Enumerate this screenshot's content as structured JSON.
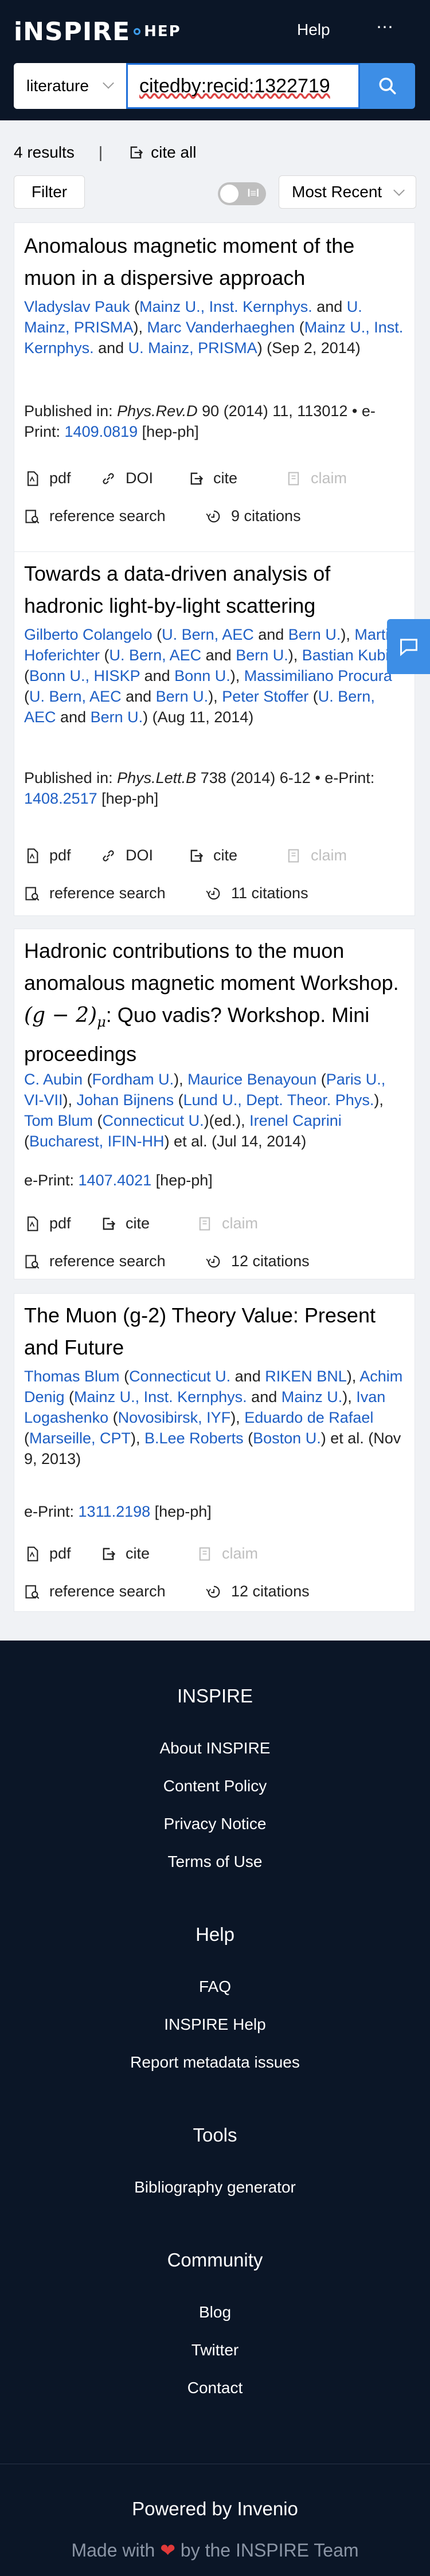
{
  "header": {
    "logo_main": "iNSPIRE",
    "logo_sub": "HEP",
    "help_label": "Help",
    "more_label": "⋯"
  },
  "search": {
    "collection": "literature",
    "query": "citedby:recid:1322719",
    "button_icon": "search-icon"
  },
  "results_bar": {
    "count_label": "4 results",
    "separator": "|",
    "cite_all_label": "cite all",
    "filter_label": "Filter",
    "toggle_label": "l≡l",
    "sort_label": "Most Recent"
  },
  "colors": {
    "header_bg": "#0b1627",
    "accent": "#3d8ee6",
    "link": "#1d5ec4"
  },
  "records": [
    {
      "title": "Anomalous magnetic moment of the muon in a dispersive approach",
      "authors_html_parts": [
        {
          "t": "Vladyslav Pauk",
          "l": 1
        },
        {
          "t": " (",
          "l": 0
        },
        {
          "t": "Mainz U., Inst. Kernphys.",
          "l": 1
        },
        {
          "t": " and ",
          "l": 0
        },
        {
          "t": "U. Mainz, PRISMA",
          "l": 1
        },
        {
          "t": "), ",
          "l": 0
        },
        {
          "t": "Marc Vanderhaeghen",
          "l": 1
        },
        {
          "t": " (",
          "l": 0
        },
        {
          "t": "Mainz U., Inst. Kernphys.",
          "l": 1
        },
        {
          "t": " and ",
          "l": 0
        },
        {
          "t": "U. Mainz, PRISMA",
          "l": 1
        },
        {
          "t": ") (Sep 2, 2014)",
          "l": 0
        }
      ],
      "pub_prefix": "Published in: ",
      "journal": "Phys.Rev.D",
      "pub_rest": " 90 (2014) 11, 113012 • e-Print: ",
      "eprint": "1409.0819",
      "category": " [hep-ph]",
      "actions": [
        "pdf",
        "DOI",
        "cite",
        "claim"
      ],
      "ref_search": "reference search",
      "citations": "9 citations"
    },
    {
      "title": "Towards a data-driven analysis of hadronic light-by-light scattering",
      "authors_html_parts": [
        {
          "t": "Gilberto Colangelo",
          "l": 1
        },
        {
          "t": " (",
          "l": 0
        },
        {
          "t": "U. Bern, AEC",
          "l": 1
        },
        {
          "t": " and ",
          "l": 0
        },
        {
          "t": "Bern U.",
          "l": 1
        },
        {
          "t": "), ",
          "l": 0
        },
        {
          "t": "Martin Hoferichter",
          "l": 1
        },
        {
          "t": " (",
          "l": 0
        },
        {
          "t": "U. Bern, AEC",
          "l": 1
        },
        {
          "t": " and ",
          "l": 0
        },
        {
          "t": "Bern U.",
          "l": 1
        },
        {
          "t": "), ",
          "l": 0
        },
        {
          "t": "Bastian Kubis",
          "l": 1
        },
        {
          "t": " (",
          "l": 0
        },
        {
          "t": "Bonn U., HISKP",
          "l": 1
        },
        {
          "t": " and ",
          "l": 0
        },
        {
          "t": "Bonn U.",
          "l": 1
        },
        {
          "t": "), ",
          "l": 0
        },
        {
          "t": "Massimiliano Procura",
          "l": 1
        },
        {
          "t": " (",
          "l": 0
        },
        {
          "t": "U. Bern, AEC",
          "l": 1
        },
        {
          "t": " and ",
          "l": 0
        },
        {
          "t": "Bern U.",
          "l": 1
        },
        {
          "t": "), ",
          "l": 0
        },
        {
          "t": "Peter Stoffer",
          "l": 1
        },
        {
          "t": " (",
          "l": 0
        },
        {
          "t": "U. Bern, AEC",
          "l": 1
        },
        {
          "t": " and ",
          "l": 0
        },
        {
          "t": "Bern U.",
          "l": 1
        },
        {
          "t": ") (Aug 11, 2014)",
          "l": 0
        }
      ],
      "pub_prefix": "Published in: ",
      "journal": "Phys.Lett.B",
      "pub_rest": " 738 (2014) 6-12 • e-Print: ",
      "eprint": "1408.2517",
      "category": " [hep-ph]",
      "actions": [
        "pdf",
        "DOI",
        "cite",
        "claim"
      ],
      "ref_search": "reference search",
      "citations": "11 citations"
    },
    {
      "title_pre": "Hadronic contributions to the muon anomalous magnetic moment Workshop. ",
      "title_math": "(g − 2)",
      "title_sub": "μ",
      "title_post": ": Quo vadis? Workshop. Mini proceedings",
      "authors_html_parts": [
        {
          "t": "C. Aubin",
          "l": 1
        },
        {
          "t": " (",
          "l": 0
        },
        {
          "t": "Fordham U.",
          "l": 1
        },
        {
          "t": "), ",
          "l": 0
        },
        {
          "t": "Maurice Benayoun",
          "l": 1
        },
        {
          "t": " (",
          "l": 0
        },
        {
          "t": "Paris U., VI-VII",
          "l": 1
        },
        {
          "t": "), ",
          "l": 0
        },
        {
          "t": "Johan Bijnens",
          "l": 1
        },
        {
          "t": " (",
          "l": 0
        },
        {
          "t": "Lund U., Dept. Theor. Phys.",
          "l": 1
        },
        {
          "t": "), ",
          "l": 0
        },
        {
          "t": "Tom Blum",
          "l": 1
        },
        {
          "t": " (",
          "l": 0
        },
        {
          "t": "Connecticut U.",
          "l": 1
        },
        {
          "t": ")(ed.), ",
          "l": 0
        },
        {
          "t": "Irenel Caprini",
          "l": 1
        },
        {
          "t": " (",
          "l": 0
        },
        {
          "t": "Bucharest, IFIN-HH",
          "l": 1
        },
        {
          "t": ") et al. (Jul 14, 2014)",
          "l": 0
        }
      ],
      "eprint_prefix": "e-Print: ",
      "eprint": "1407.4021",
      "category": " [hep-ph]",
      "actions": [
        "pdf",
        "cite",
        "claim"
      ],
      "ref_search": "reference search",
      "citations": "12 citations"
    },
    {
      "title": "The Muon (g-2) Theory Value: Present and Future",
      "authors_html_parts": [
        {
          "t": "Thomas Blum",
          "l": 1
        },
        {
          "t": " (",
          "l": 0
        },
        {
          "t": "Connecticut U.",
          "l": 1
        },
        {
          "t": " and ",
          "l": 0
        },
        {
          "t": "RIKEN BNL",
          "l": 1
        },
        {
          "t": "), ",
          "l": 0
        },
        {
          "t": "Achim Denig",
          "l": 1
        },
        {
          "t": " (",
          "l": 0
        },
        {
          "t": "Mainz U., Inst. Kernphys.",
          "l": 1
        },
        {
          "t": " and ",
          "l": 0
        },
        {
          "t": "Mainz U.",
          "l": 1
        },
        {
          "t": "), ",
          "l": 0
        },
        {
          "t": "Ivan Logashenko",
          "l": 1
        },
        {
          "t": " (",
          "l": 0
        },
        {
          "t": "Novosibirsk, IYF",
          "l": 1
        },
        {
          "t": "), ",
          "l": 0
        },
        {
          "t": "Eduardo de Rafael",
          "l": 1
        },
        {
          "t": " (",
          "l": 0
        },
        {
          "t": "Marseille, CPT",
          "l": 1
        },
        {
          "t": "), ",
          "l": 0
        },
        {
          "t": "B.Lee Roberts",
          "l": 1
        },
        {
          "t": " (",
          "l": 0
        },
        {
          "t": "Boston U.",
          "l": 1
        },
        {
          "t": ") et al. (Nov 9, 2013)",
          "l": 0
        }
      ],
      "eprint_prefix": "e-Print: ",
      "eprint": "1311.2198",
      "category": " [hep-ph]",
      "actions": [
        "pdf",
        "cite",
        "claim"
      ],
      "ref_search": "reference search",
      "citations": "12 citations"
    }
  ],
  "footer": {
    "sections": [
      {
        "heading": "INSPIRE",
        "links": [
          "About INSPIRE",
          "Content Policy",
          "Privacy Notice",
          "Terms of Use"
        ]
      },
      {
        "heading": "Help",
        "links": [
          "FAQ",
          "INSPIRE Help",
          "Report metadata issues"
        ]
      },
      {
        "heading": "Tools",
        "links": [
          "Bibliography generator"
        ]
      },
      {
        "heading": "Community",
        "links": [
          "Blog",
          "Twitter",
          "Contact"
        ]
      }
    ],
    "powered": "Powered by Invenio",
    "made_pre": "Made with ",
    "heart": "❤",
    "made_post": " by the INSPIRE Team"
  }
}
